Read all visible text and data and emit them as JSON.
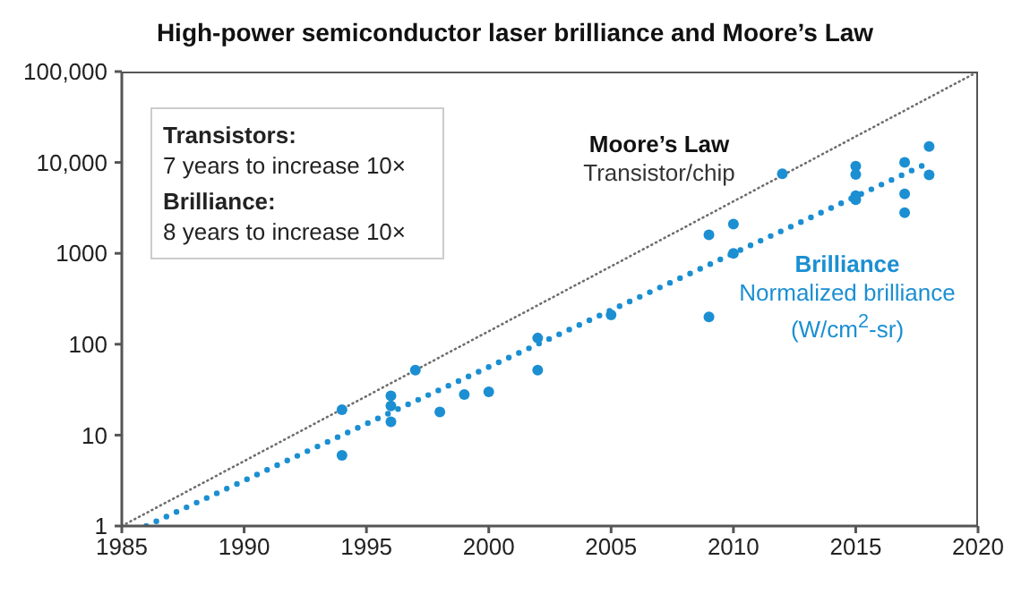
{
  "chart_data": {
    "type": "scatter",
    "title": "High-power semiconductor laser brilliance and Moore’s Law",
    "log": "y",
    "xlim": [
      1985,
      2020
    ],
    "xticks": [
      1985,
      1990,
      1995,
      2000,
      2005,
      2010,
      2015,
      2020
    ],
    "ylim": [
      1,
      100000
    ],
    "yticks": [
      1,
      10,
      100,
      1000,
      {
        "value": 10000,
        "label": "10,000"
      },
      {
        "value": 100000,
        "label": "100,000"
      }
    ],
    "grid": false,
    "marker": "circle",
    "series": [
      {
        "color": "#1b8fd2",
        "x": [
          1994,
          1994,
          1996,
          1996,
          1996,
          1997,
          1998,
          1999,
          2000,
          2002,
          2002,
          2005,
          2009,
          2009,
          2010,
          2010,
          2012,
          2015,
          2015,
          2015,
          2015,
          2017,
          2017,
          2017,
          2018,
          2018
        ],
        "values": [
          19,
          6,
          27,
          21,
          14,
          52,
          18,
          28,
          30,
          117,
          52,
          210,
          1600,
          200,
          2100,
          1000,
          7500,
          9100,
          7400,
          4300,
          3900,
          10000,
          4500,
          2800,
          15000,
          7300
        ]
      },
      {
        "type": "line",
        "color": "#1b8fd2",
        "line_style": "dotted",
        "marker": "none",
        "x": [
          1986,
          2018
        ],
        "values": [
          1,
          10000
        ]
      },
      {
        "type": "line",
        "color": "#6d6d6d",
        "line_style": "dotted",
        "marker": "none",
        "x": [
          1985,
          2020
        ],
        "values": [
          1,
          100000
        ]
      }
    ],
    "annotations": [
      "Transistors:",
      "7 years to increase 10×",
      "Brilliance:",
      "8 years to increase 10×",
      "Moore’s Law",
      "Transistor/chip",
      "Brilliance",
      "Normalized brilliance",
      "(W/cm$^{2}$-sr)"
    ]
  }
}
